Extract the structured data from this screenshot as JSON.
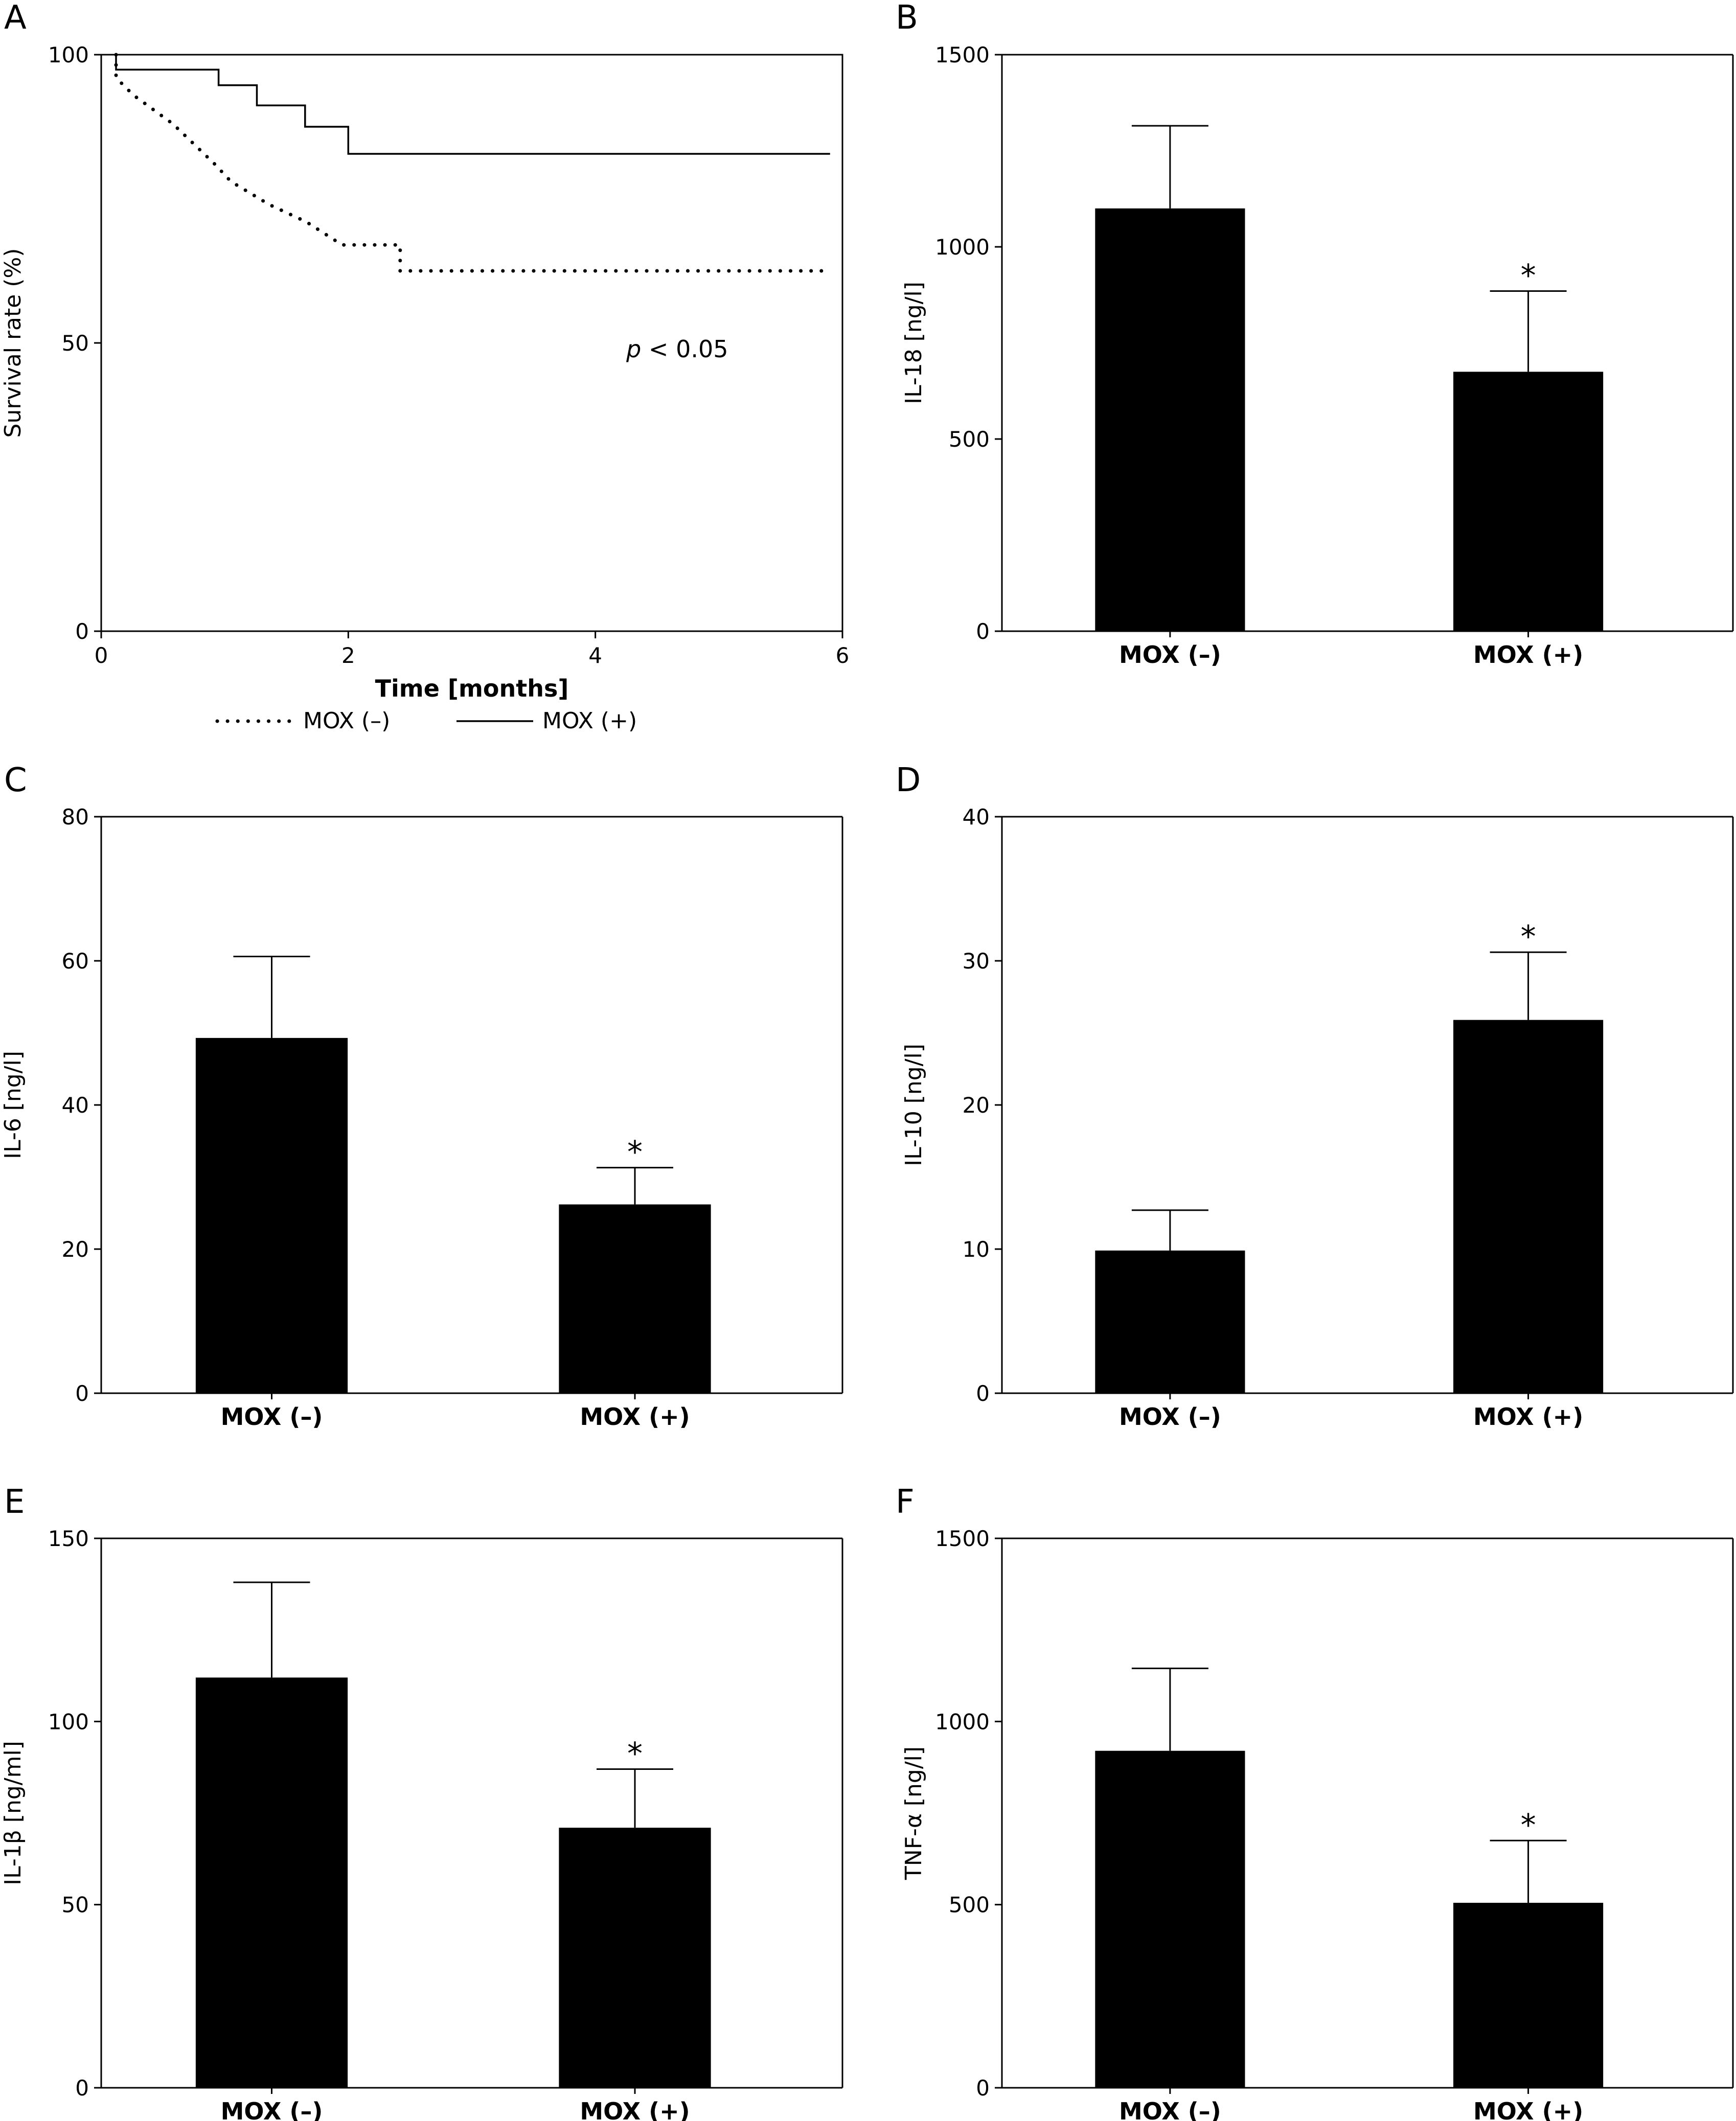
{
  "figure": {
    "chart_data": [
      {
        "id": "A",
        "panel_label": "A",
        "type": "line",
        "subtype": "kaplan-meier",
        "xlabel": "Time [months]",
        "ylabel": "Survival rate (%)",
        "xlim": [
          0,
          6
        ],
        "ylim": [
          0,
          100
        ],
        "xticks": [
          0,
          2,
          4,
          6
        ],
        "yticks": [
          0,
          50,
          100
        ],
        "annotation": "p < 0.05",
        "legend_position": "bottom",
        "series": [
          {
            "name": "MOX (–)",
            "style": "dotted",
            "x": [
              0.12,
              0.12,
              0.26,
              0.58,
              0.92,
              1.05,
              1.36,
              1.66,
              1.95,
              2.42,
              2.42,
              5.9
            ],
            "y": [
              100,
              96,
              93,
              88,
              81,
              78,
              74,
              71,
              67,
              67,
              62.5,
              62.5
            ]
          },
          {
            "name": "MOX (+)",
            "style": "solid",
            "x": [
              0.12,
              0.12,
              0.95,
              0.95,
              1.26,
              1.26,
              1.65,
              1.65,
              2.0,
              2.0,
              5.9
            ],
            "y": [
              100,
              97.4,
              97.4,
              94.7,
              94.7,
              91.2,
              91.2,
              87.5,
              87.5,
              82.8,
              82.8
            ]
          }
        ]
      },
      {
        "id": "B",
        "panel_label": "B",
        "type": "bar",
        "ylabel": "IL-18 [ng/l]",
        "ylim": [
          0,
          1500
        ],
        "yticks": [
          0,
          500,
          1000,
          1500
        ],
        "categories": [
          "MOX (–)",
          "MOX (+)"
        ],
        "values": [
          1100,
          675
        ],
        "errors": [
          215,
          210
        ],
        "significance": [
          "",
          "*"
        ]
      },
      {
        "id": "C",
        "panel_label": "C",
        "type": "bar",
        "ylabel": "IL-6 [ng/l]",
        "ylim": [
          0,
          80
        ],
        "yticks": [
          0,
          20,
          40,
          60,
          80
        ],
        "categories": [
          "MOX (–)",
          "MOX (+)"
        ],
        "values": [
          49.3,
          26.2
        ],
        "errors": [
          11.3,
          5.1
        ],
        "significance": [
          "",
          "*"
        ]
      },
      {
        "id": "D",
        "panel_label": "D",
        "type": "bar",
        "ylabel": "IL-10 [ng/l]",
        "ylim": [
          0,
          40
        ],
        "yticks": [
          0,
          10,
          20,
          30,
          40
        ],
        "categories": [
          "MOX (–)",
          "MOX (+)"
        ],
        "values": [
          9.9,
          25.9
        ],
        "errors": [
          2.8,
          4.7
        ],
        "significance": [
          "",
          "*"
        ]
      },
      {
        "id": "E",
        "panel_label": "E",
        "type": "bar",
        "ylabel": "IL-1β [ng/ml]",
        "ylim": [
          0,
          150
        ],
        "yticks": [
          0,
          50,
          100,
          150
        ],
        "categories": [
          "MOX (–)",
          "MOX (+)"
        ],
        "values": [
          112,
          71
        ],
        "errors": [
          26,
          16
        ],
        "significance": [
          "",
          "*"
        ]
      },
      {
        "id": "F",
        "panel_label": "F",
        "type": "bar",
        "ylabel": "TNF-α [ng/l]",
        "ylim": [
          0,
          1500
        ],
        "yticks": [
          0,
          500,
          1000,
          1500
        ],
        "categories": [
          "MOX (–)",
          "MOX (+)"
        ],
        "values": [
          920,
          505
        ],
        "errors": [
          225,
          170
        ],
        "significance": [
          "",
          "*"
        ]
      }
    ]
  }
}
